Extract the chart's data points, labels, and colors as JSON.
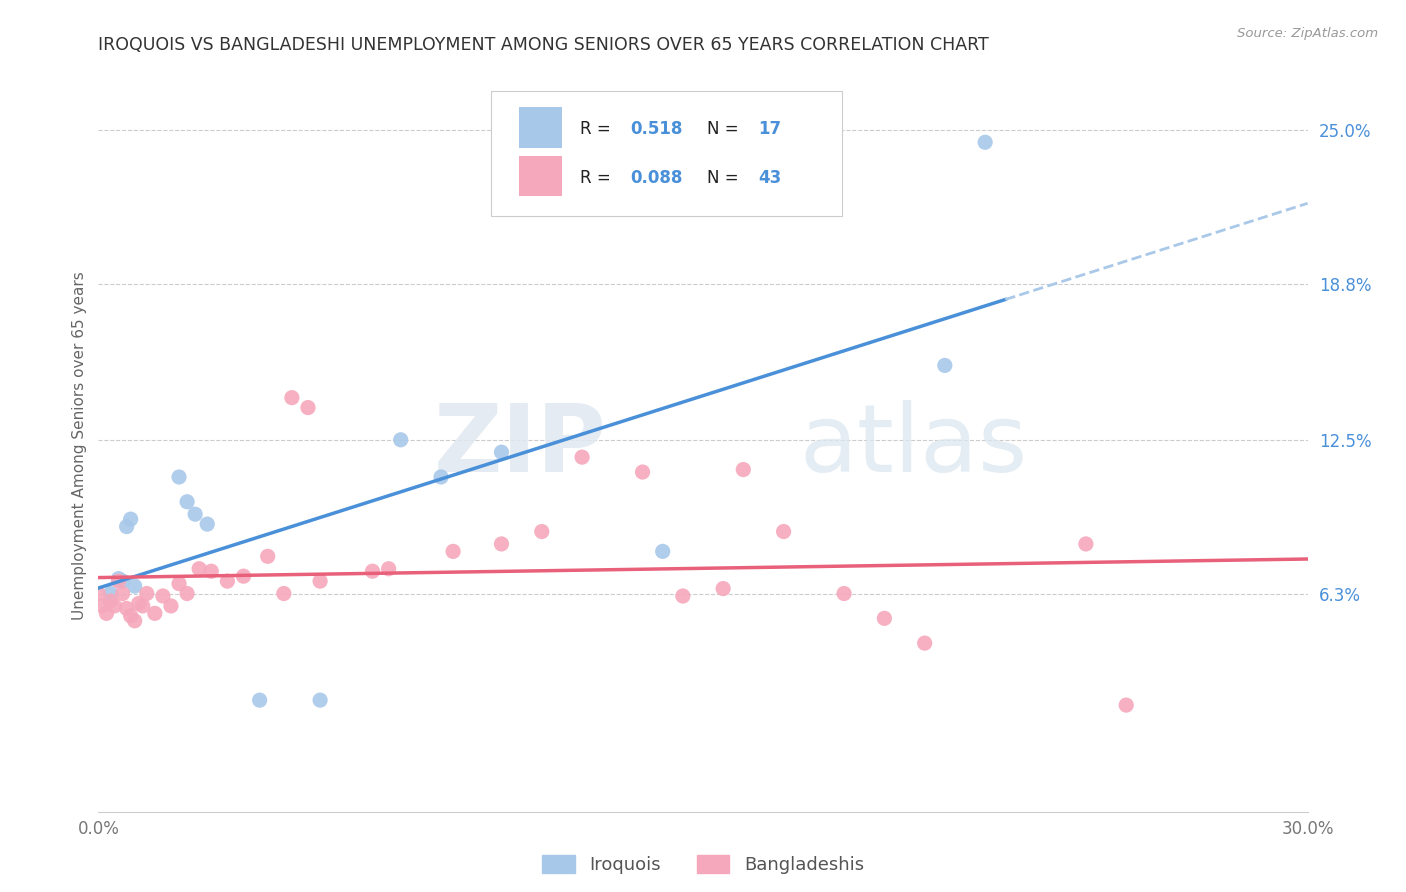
{
  "title": "IROQUOIS VS BANGLADESHI UNEMPLOYMENT AMONG SENIORS OVER 65 YEARS CORRELATION CHART",
  "source": "Source: ZipAtlas.com",
  "ylabel": "Unemployment Among Seniors over 65 years",
  "xlim": [
    0.0,
    0.3
  ],
  "ylim": [
    -0.025,
    0.27
  ],
  "xticks": [
    0.0,
    0.05,
    0.1,
    0.15,
    0.2,
    0.25,
    0.3
  ],
  "xticklabels": [
    "0.0%",
    "",
    "",
    "",
    "",
    "",
    "30.0%"
  ],
  "right_yticks": [
    0.063,
    0.125,
    0.188,
    0.25
  ],
  "right_yticklabels": [
    "6.3%",
    "12.5%",
    "18.8%",
    "25.0%"
  ],
  "iroquois_color": "#a8c8ea",
  "bangladeshi_color": "#f5a8bc",
  "iroquois_line_color": "#4a90d9",
  "bangladeshi_line_color": "#e8607a",
  "dashed_line_color": "#aac8e8",
  "legend_label1": "Iroquois",
  "legend_label2": "Bangladeshis",
  "watermark_zip": "ZIP",
  "watermark_atlas": "atlas",
  "iroquois_x": [
    0.003,
    0.005,
    0.006,
    0.007,
    0.008,
    0.009,
    0.02,
    0.022,
    0.024,
    0.027,
    0.04,
    0.055,
    0.075,
    0.085,
    0.1,
    0.14,
    0.21,
    0.22
  ],
  "iroquois_y": [
    0.063,
    0.069,
    0.068,
    0.09,
    0.093,
    0.066,
    0.11,
    0.1,
    0.095,
    0.091,
    0.02,
    0.02,
    0.125,
    0.11,
    0.12,
    0.08,
    0.155,
    0.245
  ],
  "bangladeshi_x": [
    0.0,
    0.001,
    0.002,
    0.003,
    0.004,
    0.005,
    0.006,
    0.007,
    0.008,
    0.009,
    0.01,
    0.011,
    0.012,
    0.014,
    0.016,
    0.018,
    0.02,
    0.022,
    0.025,
    0.028,
    0.032,
    0.036,
    0.042,
    0.046,
    0.048,
    0.052,
    0.055,
    0.068,
    0.072,
    0.088,
    0.1,
    0.11,
    0.12,
    0.135,
    0.145,
    0.155,
    0.16,
    0.17,
    0.185,
    0.195,
    0.205,
    0.245,
    0.255
  ],
  "bangladeshi_y": [
    0.063,
    0.058,
    0.055,
    0.06,
    0.058,
    0.068,
    0.063,
    0.057,
    0.054,
    0.052,
    0.059,
    0.058,
    0.063,
    0.055,
    0.062,
    0.058,
    0.067,
    0.063,
    0.073,
    0.072,
    0.068,
    0.07,
    0.078,
    0.063,
    0.142,
    0.138,
    0.068,
    0.072,
    0.073,
    0.08,
    0.083,
    0.088,
    0.118,
    0.112,
    0.062,
    0.065,
    0.113,
    0.088,
    0.063,
    0.053,
    0.043,
    0.083,
    0.018
  ]
}
